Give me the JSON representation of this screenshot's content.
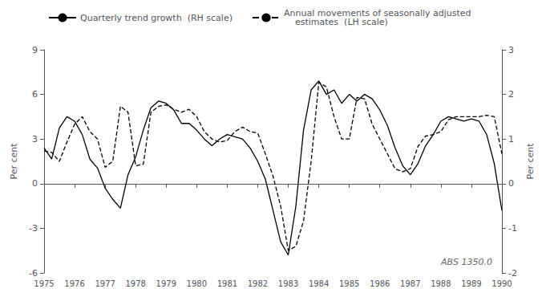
{
  "chart_data": {
    "type": "line",
    "x": [
      1975.0,
      1975.25,
      1975.5,
      1975.75,
      1976.0,
      1976.25,
      1976.5,
      1976.75,
      1977.0,
      1977.25,
      1977.5,
      1977.75,
      1978.0,
      1978.25,
      1978.5,
      1978.75,
      1979.0,
      1979.25,
      1979.5,
      1979.75,
      1980.0,
      1980.25,
      1980.5,
      1980.75,
      1981.0,
      1981.25,
      1981.5,
      1981.75,
      1982.0,
      1982.25,
      1982.5,
      1982.75,
      1983.0,
      1983.25,
      1983.5,
      1983.75,
      1984.0,
      1984.25,
      1984.5,
      1984.75,
      1985.0,
      1985.25,
      1985.5,
      1985.75,
      1986.0,
      1986.25,
      1986.5,
      1986.75,
      1987.0,
      1987.25,
      1987.5,
      1987.75,
      1988.0,
      1988.25,
      1988.5,
      1988.75,
      1989.0,
      1989.25,
      1989.5,
      1989.75,
      1990.0
    ],
    "xlim": [
      1975,
      1990
    ],
    "xticks": [
      1975,
      1976,
      1977,
      1978,
      1979,
      1980,
      1981,
      1982,
      1983,
      1984,
      1985,
      1986,
      1987,
      1988,
      1989,
      1990
    ],
    "ylabel": "Per cent",
    "ylim": [
      -6,
      9
    ],
    "yticks": [
      -6,
      -3,
      0,
      3,
      6,
      9
    ],
    "y2label": "Per cent",
    "y2lim": [
      -2,
      3
    ],
    "y2ticks": [
      -2,
      -1,
      0,
      1,
      2,
      3
    ],
    "series": [
      {
        "name": "Quarterly trend growth  (RH scale)",
        "axis": "y2",
        "color": "#000000",
        "line_style": "solid",
        "values": [
          0.8,
          0.55,
          1.25,
          1.5,
          1.4,
          1.1,
          0.55,
          0.35,
          -0.1,
          -0.35,
          -0.55,
          0.2,
          0.6,
          1.2,
          1.7,
          1.85,
          1.8,
          1.65,
          1.35,
          1.35,
          1.2,
          1.0,
          0.85,
          1.0,
          1.1,
          1.05,
          1.0,
          0.8,
          0.5,
          0.1,
          -0.6,
          -1.3,
          -1.6,
          -0.5,
          1.2,
          2.1,
          2.3,
          2.0,
          2.1,
          1.8,
          2.0,
          1.85,
          2.0,
          1.9,
          1.65,
          1.3,
          0.8,
          0.4,
          0.2,
          0.45,
          0.85,
          1.1,
          1.4,
          1.5,
          1.45,
          1.4,
          1.45,
          1.4,
          1.1,
          0.45,
          -0.6
        ]
      },
      {
        "name": "Annual movements of seasonally adjusted\n    estimates  (LH scale)",
        "axis": "y",
        "color": "#000000",
        "line_style": "dashed",
        "values": [
          2.2,
          2.1,
          1.5,
          2.8,
          4.0,
          4.5,
          3.5,
          3.0,
          1.1,
          1.5,
          5.2,
          4.8,
          1.2,
          1.3,
          4.8,
          5.2,
          5.3,
          5.0,
          4.8,
          5.0,
          4.5,
          3.5,
          3.0,
          2.8,
          2.9,
          3.5,
          3.8,
          3.5,
          3.4,
          2.0,
          0.5,
          -1.5,
          -4.5,
          -4.2,
          -2.5,
          1.5,
          6.8,
          6.5,
          4.5,
          3.0,
          3.0,
          5.8,
          5.7,
          4.0,
          3.0,
          2.0,
          1.0,
          0.8,
          1.0,
          2.5,
          3.2,
          3.3,
          3.5,
          4.3,
          4.5,
          4.5,
          4.5,
          4.5,
          4.6,
          4.5,
          2.0
        ]
      }
    ],
    "legend": "upper left",
    "grid": false,
    "annotation": "ABS 1350.0"
  }
}
